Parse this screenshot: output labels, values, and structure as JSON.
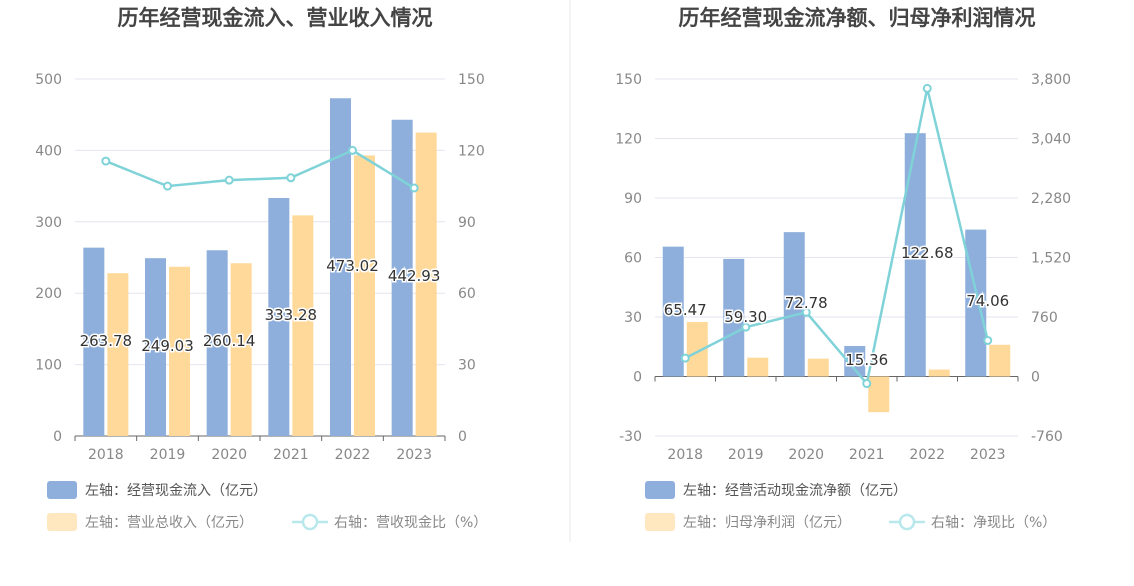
{
  "chart_data": [
    {
      "type": "bar",
      "title": "历年经营现金流入、营业收入情况",
      "categories": [
        "2018",
        "2019",
        "2020",
        "2021",
        "2022",
        "2023"
      ],
      "left_axis": {
        "ylim": [
          0,
          500
        ],
        "ticks": [
          "0",
          "100",
          "200",
          "300",
          "400",
          "500"
        ]
      },
      "right_axis": {
        "ylim": [
          0,
          150
        ],
        "ticks": [
          "0",
          "30",
          "60",
          "90",
          "120",
          "150"
        ]
      },
      "grid": true,
      "legend_position": "bottom",
      "series": [
        {
          "name": "左轴：经营现金流入（亿元）",
          "kind": "bar",
          "axis": "left",
          "color": "#8eaedb",
          "values": [
            263.78,
            249.03,
            260.14,
            333.28,
            473.02,
            442.93
          ],
          "labels": [
            "263.78",
            "249.03",
            "260.14",
            "333.28",
            "473.02",
            "442.93"
          ]
        },
        {
          "name": "左轴：营业总收入（亿元）",
          "kind": "bar",
          "axis": "left",
          "color": "#ffd99a",
          "values": [
            228,
            237,
            242,
            309,
            393,
            425
          ]
        },
        {
          "name": "右轴：营收现金比（%）",
          "kind": "line",
          "axis": "right",
          "color": "#7fd3d8",
          "values": [
            115.5,
            105,
            107.5,
            108.5,
            120,
            104.2
          ]
        }
      ]
    },
    {
      "type": "bar",
      "title": "历年经营现金流净额、归母净利润情况",
      "categories": [
        "2018",
        "2019",
        "2020",
        "2021",
        "2022",
        "2023"
      ],
      "left_axis": {
        "ylim": [
          -30,
          150
        ],
        "ticks": [
          "-30",
          "0",
          "30",
          "60",
          "90",
          "120",
          "150"
        ]
      },
      "right_axis": {
        "ylim": [
          -760,
          3800
        ],
        "ticks": [
          "-760",
          "0",
          "760",
          "1,520",
          "2,280",
          "3,040",
          "3,800"
        ]
      },
      "grid": true,
      "legend_position": "bottom",
      "series": [
        {
          "name": "左轴：经营活动现金流净额（亿元）",
          "kind": "bar",
          "axis": "left",
          "color": "#8eaedb",
          "values": [
            65.47,
            59.3,
            72.78,
            15.36,
            122.68,
            74.06
          ],
          "labels": [
            "65.47",
            "59.30",
            "72.78",
            "15.36",
            "122.68",
            "74.06"
          ]
        },
        {
          "name": "左轴：归母净利润（亿元）",
          "kind": "bar",
          "axis": "left",
          "color": "#ffd99a",
          "values": [
            27.5,
            9.5,
            9.0,
            -18.0,
            3.5,
            16.0
          ]
        },
        {
          "name": "右轴：净现比（%）",
          "kind": "line",
          "axis": "right",
          "color": "#7fd3d8",
          "values": [
            235,
            630,
            820,
            -90,
            3680,
            460
          ]
        }
      ]
    }
  ]
}
